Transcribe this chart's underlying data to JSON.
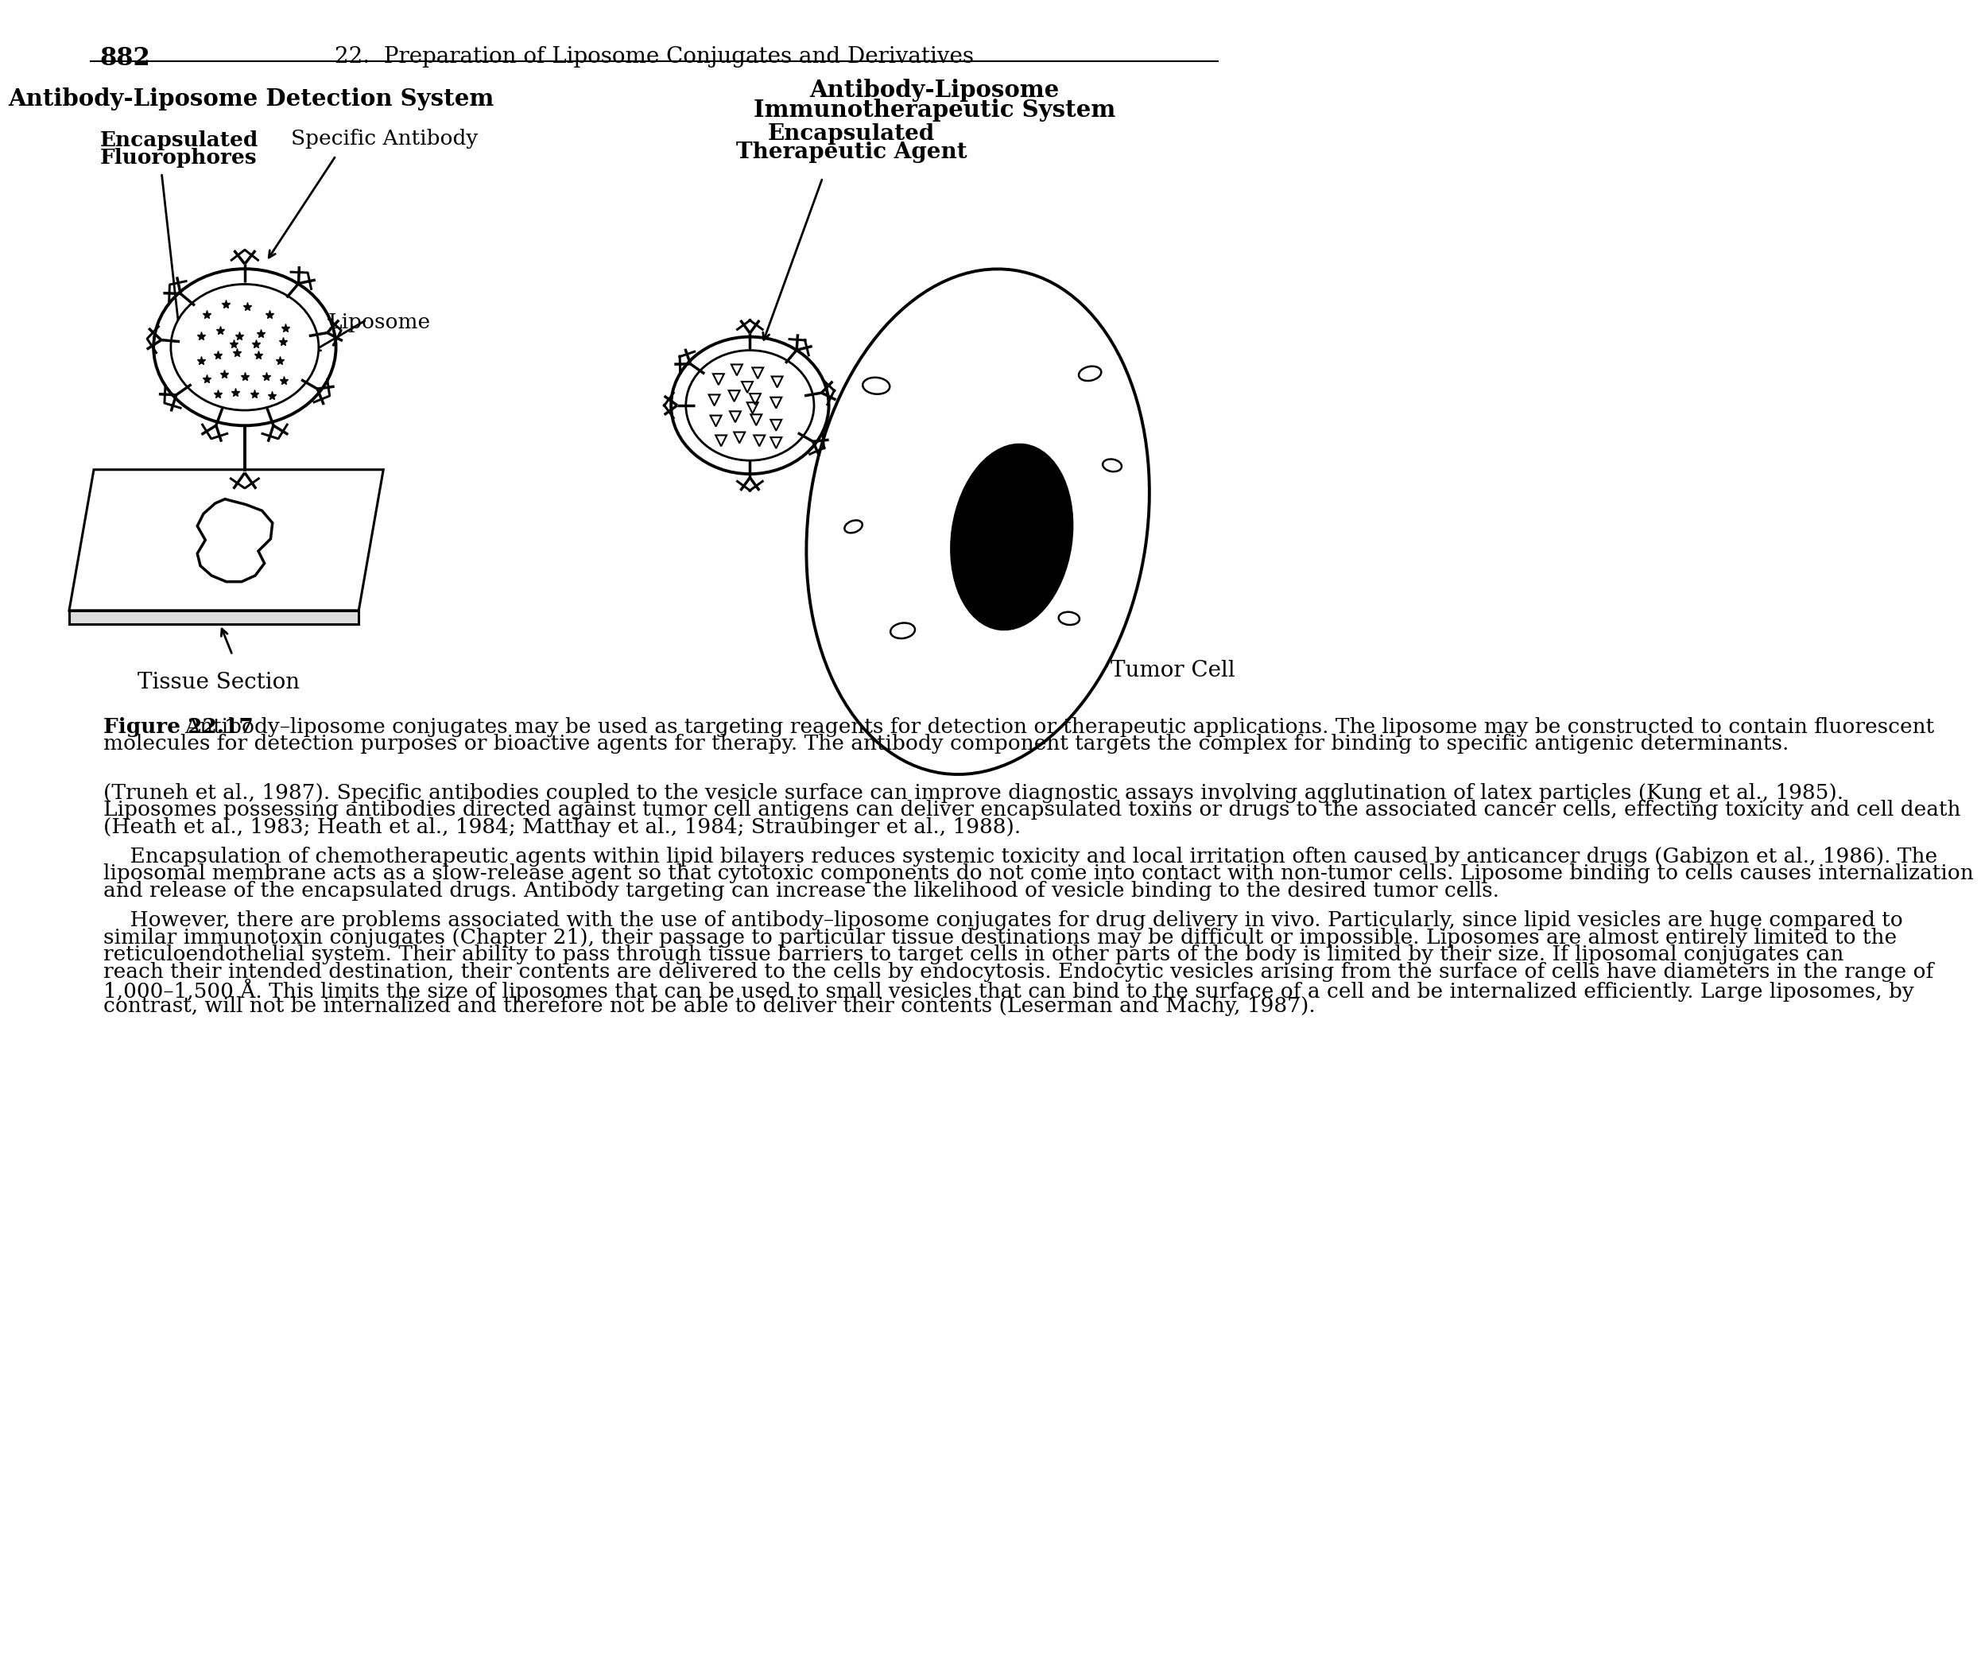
{
  "page_number": "882",
  "header": "22.  Preparation of Liposome Conjugates and Derivatives",
  "left_diagram_title": "Antibody-Liposome Detection System",
  "right_diagram_title_line1": "Antibody-Liposome",
  "right_diagram_title_line2": "Immunotherapeutic System",
  "label_encapsulated_fluorophores_1": "Encapsulated",
  "label_encapsulated_fluorophores_2": "Fluorophores",
  "label_specific_antibody": "Specific Antibody",
  "label_liposome": "Liposome",
  "label_tissue_section": "Tissue Section",
  "label_encapsulated_agent_1": "Encapsulated",
  "label_encapsulated_agent_2": "Therapeutic Agent",
  "label_tumor_cell": "Tumor Cell",
  "caption_label": "Figure 22.17",
  "caption_body": "  Antibody–liposome conjugates may be used as targeting reagents for detection or therapeutic applications. The liposome may be constructed to contain fluorescent molecules for detection purposes or bioactive agents for therapy. The antibody component targets the complex for binding to specific antigenic determinants.",
  "paragraph1": "(Truneh et al., 1987). Specific antibodies coupled to the vesicle surface can improve diagnostic assays involving agglutination of latex particles (Kung et al., 1985). Liposomes possessing antibodies directed against tumor cell antigens can deliver encapsulated toxins or drugs to the associated cancer cells, effecting toxicity and cell death (Heath et al., 1983; Heath et al., 1984; Matthay et al., 1984; Straubinger et al., 1988).",
  "paragraph2": "Encapsulation of chemotherapeutic agents within lipid bilayers reduces systemic toxicity and local irritation often caused by anticancer drugs (Gabizon et al., 1986). The liposomal membrane acts as a slow-release agent so that cytotoxic components do not come into contact with non-tumor cells. Liposome binding to cells causes internalization and release of the encapsulated drugs. Antibody targeting can increase the likelihood of vesicle binding to the desired tumor cells.",
  "paragraph3": "However, there are problems associated with the use of antibody–liposome conjugates for drug delivery in vivo. Particularly, since lipid vesicles are huge compared to similar immunotoxin conjugates (Chapter 21), their passage to particular tissue destinations may be difficult or impossible. Liposomes are almost entirely limited to the reticuloendothelial system. Their ability to pass through tissue barriers to target cells in other parts of the body is limited by their size. If liposomal conjugates can reach their intended destination, their contents are delivered to the cells by endocytosis. Endocytic vesicles arising from the surface of cells have diameters in the range of 1,000–1,500 Å. This limits the size of liposomes that can be used to small vesicles that can bind to the surface of a cell and be internalized efficiently. Large liposomes, by contrast, will not be internalized and therefore not be able to deliver their contents (Leserman and Machy, 1987).",
  "bg_color": "#ffffff",
  "text_color": "#000000"
}
